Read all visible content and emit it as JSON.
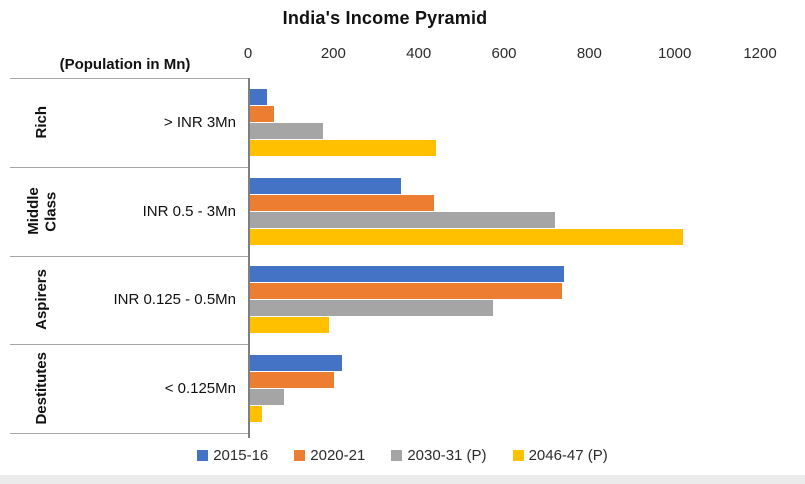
{
  "title": "India's Income Pyramid",
  "axis_unit_label": "(Population in Mn)",
  "chart_data": {
    "type": "bar",
    "orientation": "horizontal",
    "title": "India's Income Pyramid",
    "xlabel": "Population in Mn",
    "xlim": [
      0,
      1200
    ],
    "ticks": [
      0,
      200,
      400,
      600,
      800,
      1000,
      1200
    ],
    "grid": false,
    "legend_position": "bottom",
    "categories": [
      "Rich",
      "Middle Class",
      "Aspirers",
      "Destitutes"
    ],
    "category_income_labels": [
      "> INR 3Mn",
      "INR 0.5 - 3Mn",
      "INR 0.125 - 0.5Mn",
      "< 0.125Mn"
    ],
    "series": [
      {
        "name": "2015-16",
        "color": "#4472C4",
        "values": [
          40,
          354,
          735,
          215
        ]
      },
      {
        "name": "2020-21",
        "color": "#ED7D31",
        "values": [
          56,
          432,
          732,
          196
        ]
      },
      {
        "name": "2030-31 (P)",
        "color": "#A5A5A5",
        "pattern": "dots",
        "values": [
          170,
          715,
          570,
          80
        ]
      },
      {
        "name": "2046-47 (P)",
        "color": "#FFC000",
        "values": [
          437,
          1015,
          184,
          28
        ]
      }
    ]
  },
  "colors": {
    "axis_line": "#7f7f7f",
    "row_separator": "#a6a6a6",
    "bottom_strip": "#ebebeb"
  }
}
